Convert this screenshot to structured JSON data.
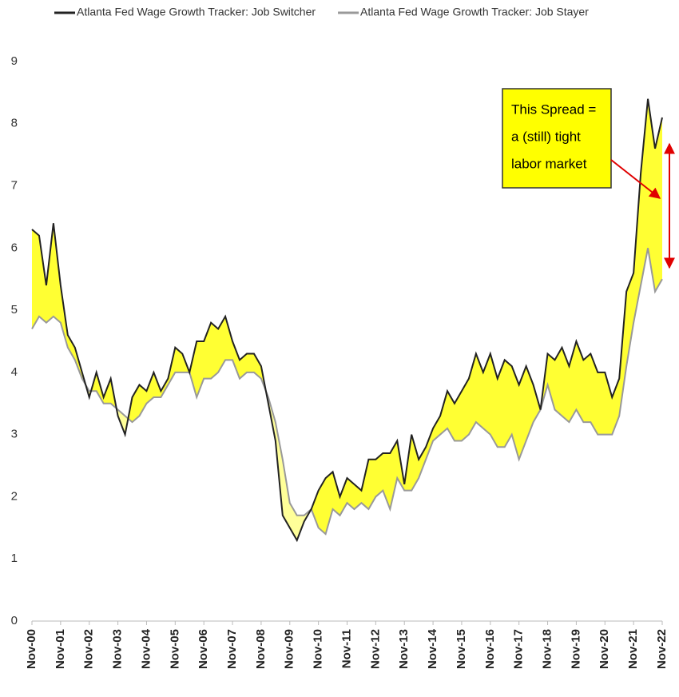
{
  "chart_data": {
    "type": "line",
    "categories": [
      "Nov-00",
      null,
      null,
      null,
      "Nov-01",
      null,
      null,
      null,
      "Nov-02",
      null,
      null,
      null,
      "Nov-03",
      null,
      null,
      null,
      "Nov-04",
      null,
      null,
      null,
      "Nov-05",
      null,
      null,
      null,
      "Nov-06",
      null,
      null,
      null,
      "Nov-07",
      null,
      null,
      null,
      "Nov-08",
      null,
      null,
      null,
      "Nov-09",
      null,
      null,
      null,
      "Nov-10",
      null,
      null,
      null,
      "Nov-11",
      null,
      null,
      null,
      "Nov-12",
      null,
      null,
      null,
      "Nov-13",
      null,
      null,
      null,
      "Nov-14",
      null,
      null,
      null,
      "Nov-15",
      null,
      null,
      null,
      "Nov-16",
      null,
      null,
      null,
      "Nov-17",
      null,
      null,
      null,
      "Nov-18",
      null,
      null,
      null,
      "Nov-19",
      null,
      null,
      null,
      "Nov-20",
      null,
      null,
      null,
      "Nov-21",
      null,
      null,
      null,
      "Nov-22"
    ],
    "series": [
      {
        "name": "Atlanta Fed Wage Growth Tracker: Job Switcher",
        "color": "#222222",
        "values": [
          6.3,
          6.2,
          5.4,
          6.4,
          5.4,
          4.6,
          4.4,
          4.0,
          3.6,
          4.0,
          3.6,
          3.9,
          3.3,
          3.0,
          3.6,
          3.8,
          3.7,
          4.0,
          3.7,
          3.9,
          4.4,
          4.3,
          4.0,
          4.5,
          4.5,
          4.8,
          4.7,
          4.9,
          4.5,
          4.2,
          4.3,
          4.3,
          4.1,
          3.5,
          2.9,
          1.7,
          1.5,
          1.3,
          1.6,
          1.8,
          2.1,
          2.3,
          2.4,
          2.0,
          2.3,
          2.2,
          2.1,
          2.6,
          2.6,
          2.7,
          2.7,
          2.9,
          2.2,
          3.0,
          2.6,
          2.8,
          3.1,
          3.3,
          3.7,
          3.5,
          3.7,
          3.9,
          4.3,
          4.0,
          4.3,
          3.9,
          4.2,
          4.1,
          3.8,
          4.1,
          3.8,
          3.4,
          4.3,
          4.2,
          4.4,
          4.1,
          4.5,
          4.2,
          4.3,
          4.0,
          4.0,
          3.6,
          3.9,
          5.3,
          5.6,
          7.2,
          8.4,
          7.6,
          8.1
        ]
      },
      {
        "name": "Atlanta Fed Wage Growth Tracker: Job Stayer",
        "color": "#999999",
        "values": [
          4.7,
          4.9,
          4.8,
          4.9,
          4.8,
          4.4,
          4.2,
          3.9,
          3.7,
          3.7,
          3.5,
          3.5,
          3.4,
          3.3,
          3.2,
          3.3,
          3.5,
          3.6,
          3.6,
          3.8,
          4.0,
          4.0,
          4.0,
          3.6,
          3.9,
          3.9,
          4.0,
          4.2,
          4.2,
          3.9,
          4.0,
          4.0,
          3.9,
          3.6,
          3.2,
          2.6,
          1.9,
          1.7,
          1.7,
          1.8,
          1.5,
          1.4,
          1.8,
          1.7,
          1.9,
          1.8,
          1.9,
          1.8,
          2.0,
          2.1,
          1.8,
          2.3,
          2.1,
          2.1,
          2.3,
          2.6,
          2.9,
          3.0,
          3.1,
          2.9,
          2.9,
          3.0,
          3.2,
          3.1,
          3.0,
          2.8,
          2.8,
          3.0,
          2.6,
          2.9,
          3.2,
          3.4,
          3.8,
          3.4,
          3.3,
          3.2,
          3.4,
          3.2,
          3.2,
          3.0,
          3.0,
          3.0,
          3.3,
          4.1,
          4.8,
          5.4,
          6.0,
          5.3,
          5.5
        ]
      }
    ],
    "ylim": [
      0,
      9
    ],
    "yticks": [
      0,
      1,
      2,
      3,
      4,
      5,
      6,
      7,
      8,
      9
    ],
    "annotation": [
      "This Spread =",
      "a (still) tight",
      "labor market"
    ]
  }
}
